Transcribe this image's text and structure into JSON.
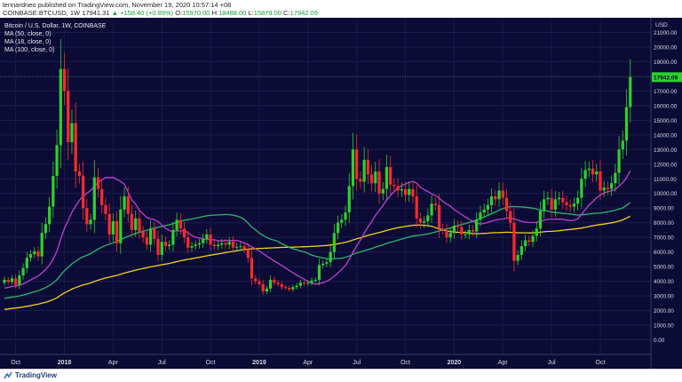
{
  "header": {
    "line1": "lennardneo published on TradingView.com, November 19, 2020 10:57:14 +08",
    "symbol_line": "COINBASE:BTCUSD, 1W",
    "last": "17941.31",
    "change": "▲ +158.40 (+0.89%)",
    "o_label": "O:",
    "o_val": "15970.00",
    "h_label": "H:",
    "h_val": "18488.00",
    "l_label": "L:",
    "l_val": "15879.00",
    "c_label": "C:",
    "c_val": "17942.09"
  },
  "footer": {
    "brand": "TradingView"
  },
  "colors": {
    "background": "#0b0b35",
    "up": "#2fd12b",
    "down": "#ff2b2b",
    "ma50": "#2db670",
    "ma18": "#c040d0",
    "ma100": "#f5d020"
  },
  "chart_data": {
    "type": "candlestick",
    "title": "Bitcoin / U.S. Dollar, 1W, COINBASE",
    "legend": [
      "MA (50, close, 0)",
      "MA (18, close, 0)",
      "MA (100, close, 0)"
    ],
    "legend_placement": "top-left",
    "y_axis_label": "USD",
    "ylim": [
      -1000,
      22000
    ],
    "y_ticks": [
      0,
      1000,
      2000,
      3000,
      4000,
      5000,
      6000,
      7000,
      8000,
      9000,
      10000,
      11000,
      12000,
      13000,
      14000,
      15000,
      16000,
      17000,
      18000,
      19000,
      20000,
      21000
    ],
    "y_tick_labels": [
      "0.00",
      "1000.00",
      "2000.00",
      "3000.00",
      "4000.00",
      "5000.00",
      "6000.00",
      "7000.00",
      "8000.00",
      "9000.00",
      "10000.00",
      "11000.00",
      "12000.00",
      "13000.00",
      "14000.00",
      "15000.00",
      "16000.00",
      "17000.00",
      "18000.00",
      "19000.00",
      "20000.00",
      "21000.00"
    ],
    "last_price_label": "17942.09",
    "x_tick_labels": [
      "Oct",
      "2018",
      "Apr",
      "Jul",
      "Oct",
      "2019",
      "Apr",
      "Jul",
      "Oct",
      "2020",
      "Apr",
      "Jul",
      "Oct"
    ],
    "weeks_from_start": [
      0,
      1,
      2,
      3,
      4,
      5,
      6,
      7,
      8,
      9,
      10,
      11,
      12,
      13,
      14,
      15,
      16,
      17,
      18,
      19,
      20,
      21,
      22,
      23,
      24,
      25,
      26,
      27,
      28,
      29,
      30,
      31,
      32,
      33,
      34,
      35,
      36,
      37,
      38,
      39,
      40,
      41,
      42,
      43,
      44,
      45,
      46,
      47,
      48,
      49,
      50,
      51,
      52,
      53,
      54,
      55,
      56,
      57,
      58,
      59,
      60,
      61,
      62,
      63,
      64,
      65,
      66,
      67,
      68,
      69,
      70,
      71,
      72,
      73,
      74,
      75,
      76,
      77,
      78,
      79,
      80,
      81,
      82,
      83,
      84,
      85,
      86,
      87,
      88,
      89,
      90,
      91,
      92,
      93,
      94,
      95,
      96,
      97,
      98,
      99,
      100,
      101,
      102,
      103,
      104,
      105,
      106,
      107,
      108,
      109,
      110,
      111,
      112,
      113,
      114,
      115,
      116,
      117,
      118,
      119,
      120,
      121,
      122,
      123,
      124,
      125,
      126,
      127,
      128,
      129,
      130,
      131,
      132,
      133,
      134,
      135,
      136,
      137,
      138,
      139,
      140,
      141,
      142,
      143,
      144,
      145,
      146,
      147,
      148,
      149,
      150,
      151,
      152,
      153,
      154,
      155,
      156,
      157,
      158,
      159,
      160,
      161,
      162,
      163,
      164,
      165,
      166,
      167
    ],
    "close": [
      4100,
      3950,
      4200,
      3750,
      4400,
      4900,
      5600,
      5850,
      6050,
      5700,
      7300,
      7900,
      9100,
      11200,
      13300,
      18500,
      17000,
      13500,
      14800,
      11500,
      11200,
      9000,
      7900,
      8200,
      11100,
      10300,
      9200,
      8600,
      7200,
      8100,
      6600,
      8900,
      9800,
      8600,
      7500,
      8300,
      7400,
      7000,
      6500,
      7600,
      6900,
      5800,
      6700,
      6400,
      6500,
      7500,
      8200,
      7600,
      7000,
      6300,
      6400,
      6500,
      6600,
      6900,
      7200,
      6500,
      6400,
      6500,
      6600,
      6500,
      6700,
      6300,
      6350,
      6400,
      6200,
      5600,
      4200,
      4000,
      3800,
      3300,
      3500,
      4100,
      3900,
      3800,
      3600,
      3550,
      3450,
      3600,
      3700,
      3900,
      3850,
      3900,
      4050,
      4100,
      5100,
      5200,
      5300,
      6000,
      7300,
      8000,
      8200,
      8700,
      10500,
      13000,
      11000,
      10800,
      12300,
      11300,
      10700,
      11500,
      10000,
      10300,
      11800,
      10600,
      10500,
      10200,
      10300,
      9900,
      10300,
      9800,
      8300,
      8000,
      8100,
      8500,
      9300,
      9200,
      7600,
      7500,
      7000,
      7300,
      7800,
      7700,
      7200,
      7200,
      7500,
      7400,
      8200,
      8700,
      8900,
      9200,
      9800,
      9600,
      10200,
      9700,
      8800,
      8000,
      5400,
      5800,
      6400,
      6800,
      6700,
      7100,
      7600,
      8800,
      9600,
      9700,
      8900,
      9600,
      9700,
      9400,
      9200,
      9100,
      9300,
      9700,
      11000,
      11600,
      11700,
      11300,
      11500,
      10200,
      10400,
      10300,
      10700,
      11400,
      13000,
      13600,
      15900,
      17942
    ]
  }
}
